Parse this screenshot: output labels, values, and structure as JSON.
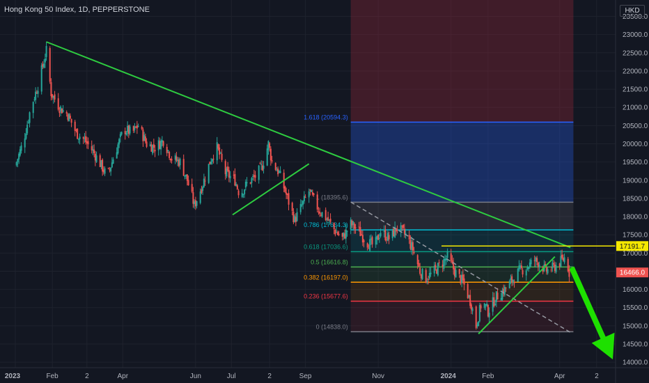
{
  "header": {
    "title": "Hong Kong 50 Index, 1D, PEPPERSTONE",
    "currency": "HKD"
  },
  "colors": {
    "background": "#131722",
    "grid": "#1e222d",
    "axis_text": "#b2b5be",
    "up": "#26a69a",
    "down": "#ef5350",
    "trendline": "#2ecc40",
    "price_line": "#f5e800",
    "projection_arrow": "#1ee000"
  },
  "chart_data": {
    "type": "candlestick",
    "symbol": "Hong Kong 50 Index",
    "timeframe": "1D",
    "source": "PEPPERSTONE",
    "ylim": [
      13850,
      23950
    ],
    "y_ticks": [
      14000,
      14500,
      15000,
      15500,
      16000,
      16500,
      17000,
      17500,
      18000,
      18500,
      19000,
      19500,
      20000,
      20500,
      21000,
      21500,
      22000,
      22500,
      23000,
      23500
    ],
    "y_tick_labels": [
      "14000.0",
      "14500.0",
      "15000.0",
      "15500.0",
      "16000.0",
      "16500.0",
      "17000.0",
      "17500.0",
      "18000.0",
      "18500.0",
      "19000.0",
      "19500.0",
      "20000.0",
      "20500.0",
      "21000.0",
      "21500.0",
      "22000.0",
      "22500.0",
      "23000.0",
      "23500.0"
    ],
    "x_range": [
      "2023-01-01",
      "2024-05-05"
    ],
    "x_ticks": [
      {
        "date": "2023-01-01",
        "label": "2023"
      },
      {
        "date": "2023-02-01",
        "label": "Feb"
      },
      {
        "date": "2023-03-02",
        "label": "2"
      },
      {
        "date": "2023-04-01",
        "label": "Apr"
      },
      {
        "date": "2023-06-01",
        "label": "Jun"
      },
      {
        "date": "2023-07-01",
        "label": "Jul"
      },
      {
        "date": "2023-08-02",
        "label": "2"
      },
      {
        "date": "2023-09-01",
        "label": "Sep"
      },
      {
        "date": "2023-11-01",
        "label": "Nov"
      },
      {
        "date": "2024-01-01",
        "label": "2024"
      },
      {
        "date": "2024-02-01",
        "label": "Feb"
      },
      {
        "date": "2024-04-01",
        "label": "Apr"
      },
      {
        "date": "2024-05-02",
        "label": "2"
      }
    ],
    "price_path": [
      [
        "2023-01-01",
        19400
      ],
      [
        "2023-01-08",
        20100
      ],
      [
        "2023-01-14",
        21000
      ],
      [
        "2023-01-20",
        21600
      ],
      [
        "2023-01-27",
        22550
      ],
      [
        "2023-01-31",
        21400
      ],
      [
        "2023-02-07",
        21000
      ],
      [
        "2023-02-14",
        20800
      ],
      [
        "2023-02-21",
        20300
      ],
      [
        "2023-02-28",
        20100
      ],
      [
        "2023-03-07",
        19800
      ],
      [
        "2023-03-14",
        19400
      ],
      [
        "2023-03-19",
        19100
      ],
      [
        "2023-03-26",
        19800
      ],
      [
        "2023-04-02",
        20400
      ],
      [
        "2023-04-09",
        20300
      ],
      [
        "2023-04-14",
        20500
      ],
      [
        "2023-04-21",
        20000
      ],
      [
        "2023-04-28",
        19900
      ],
      [
        "2023-05-05",
        20100
      ],
      [
        "2023-05-12",
        19600
      ],
      [
        "2023-05-19",
        19500
      ],
      [
        "2023-05-25",
        19000
      ],
      [
        "2023-05-31",
        18300
      ],
      [
        "2023-06-07",
        18900
      ],
      [
        "2023-06-14",
        19600
      ],
      [
        "2023-06-19",
        19900
      ],
      [
        "2023-06-26",
        19200
      ],
      [
        "2023-07-04",
        19000
      ],
      [
        "2023-07-08",
        18600
      ],
      [
        "2023-07-14",
        18900
      ],
      [
        "2023-07-21",
        19100
      ],
      [
        "2023-07-27",
        19400
      ],
      [
        "2023-08-01",
        20000
      ],
      [
        "2023-08-04",
        19500
      ],
      [
        "2023-08-10",
        19200
      ],
      [
        "2023-08-18",
        18400
      ],
      [
        "2023-08-23",
        17900
      ],
      [
        "2023-08-29",
        18300
      ],
      [
        "2023-09-04",
        18700
      ],
      [
        "2023-09-12",
        18200
      ],
      [
        "2023-09-20",
        17900
      ],
      [
        "2023-09-26",
        17600
      ],
      [
        "2023-10-02",
        17400
      ],
      [
        "2023-10-09",
        17800
      ],
      [
        "2023-10-16",
        17600
      ],
      [
        "2023-10-22",
        17300
      ],
      [
        "2023-10-29",
        17200
      ],
      [
        "2023-11-03",
        17600
      ],
      [
        "2023-11-10",
        17400
      ],
      [
        "2023-11-17",
        17700
      ],
      [
        "2023-11-24",
        17500
      ],
      [
        "2023-11-30",
        17100
      ],
      [
        "2023-12-06",
        16500
      ],
      [
        "2023-12-11",
        16300
      ],
      [
        "2023-12-18",
        16500
      ],
      [
        "2023-12-24",
        16700
      ],
      [
        "2023-12-29",
        16900
      ],
      [
        "2024-01-04",
        16500
      ],
      [
        "2024-01-11",
        16200
      ],
      [
        "2024-01-18",
        15600
      ],
      [
        "2024-01-22",
        15000
      ],
      [
        "2024-01-27",
        15700
      ],
      [
        "2024-02-01",
        15400
      ],
      [
        "2024-02-08",
        15800
      ],
      [
        "2024-02-15",
        16000
      ],
      [
        "2024-02-20",
        16200
      ],
      [
        "2024-02-27",
        16500
      ],
      [
        "2024-03-04",
        16600
      ],
      [
        "2024-03-11",
        16800
      ],
      [
        "2024-03-16",
        16700
      ],
      [
        "2024-03-20",
        16500
      ],
      [
        "2024-03-27",
        16600
      ],
      [
        "2024-04-03",
        16800
      ],
      [
        "2024-04-06",
        16900
      ],
      [
        "2024-04-09",
        16466
      ]
    ],
    "last_price": {
      "value": 16466,
      "label": "16466.0"
    },
    "horizontal_line": {
      "value": 17191.7,
      "label": "17191.7",
      "from": "2023-12-24",
      "to": "2024-04-30"
    },
    "fibonacci": {
      "from": "2023-10-09",
      "to": "2024-04-09",
      "levels": [
        {
          "ratio": "0",
          "price": 14838.0,
          "label": "0 (14838.0)",
          "color": "#787b86"
        },
        {
          "ratio": "0.236",
          "price": 15677.6,
          "label": "0.236 (15677.6)",
          "color": "#f23645"
        },
        {
          "ratio": "0.382",
          "price": 16197.0,
          "label": "0.382 (16197.0)",
          "color": "#ff9800"
        },
        {
          "ratio": "0.5",
          "price": 16616.8,
          "label": "0.5 (16616.8)",
          "color": "#4caf50"
        },
        {
          "ratio": "0.618",
          "price": 17036.6,
          "label": "0.618 (17036.6)",
          "color": "#089981"
        },
        {
          "ratio": "0.786",
          "price": 17634.3,
          "label": "0.786 (17634.3)",
          "color": "#00bcd4"
        },
        {
          "ratio": "1",
          "price": 18395.6,
          "label": "1 (18395.6)",
          "color": "#787b86"
        },
        {
          "ratio": "1.618",
          "price": 20594.3,
          "label": "1.618 (20594.3)",
          "color": "#2962ff"
        }
      ],
      "upper_zone_top": 23950
    },
    "trendlines": [
      {
        "from": [
          "2023-01-27",
          22800
        ],
        "to": [
          "2024-04-10",
          17150
        ]
      },
      {
        "from": [
          "2023-07-02",
          18050
        ],
        "to": [
          "2023-09-04",
          19450
        ]
      },
      {
        "from": [
          "2024-01-24",
          14780
        ],
        "to": [
          "2024-03-28",
          16900
        ]
      }
    ],
    "dashed_line": {
      "from": [
        "2023-10-09",
        18400
      ],
      "to": [
        "2024-04-11",
        14800
      ]
    },
    "projection_arrow": {
      "from": [
        "2024-04-11",
        16600
      ],
      "to": [
        "2024-05-05",
        14000
      ]
    }
  }
}
